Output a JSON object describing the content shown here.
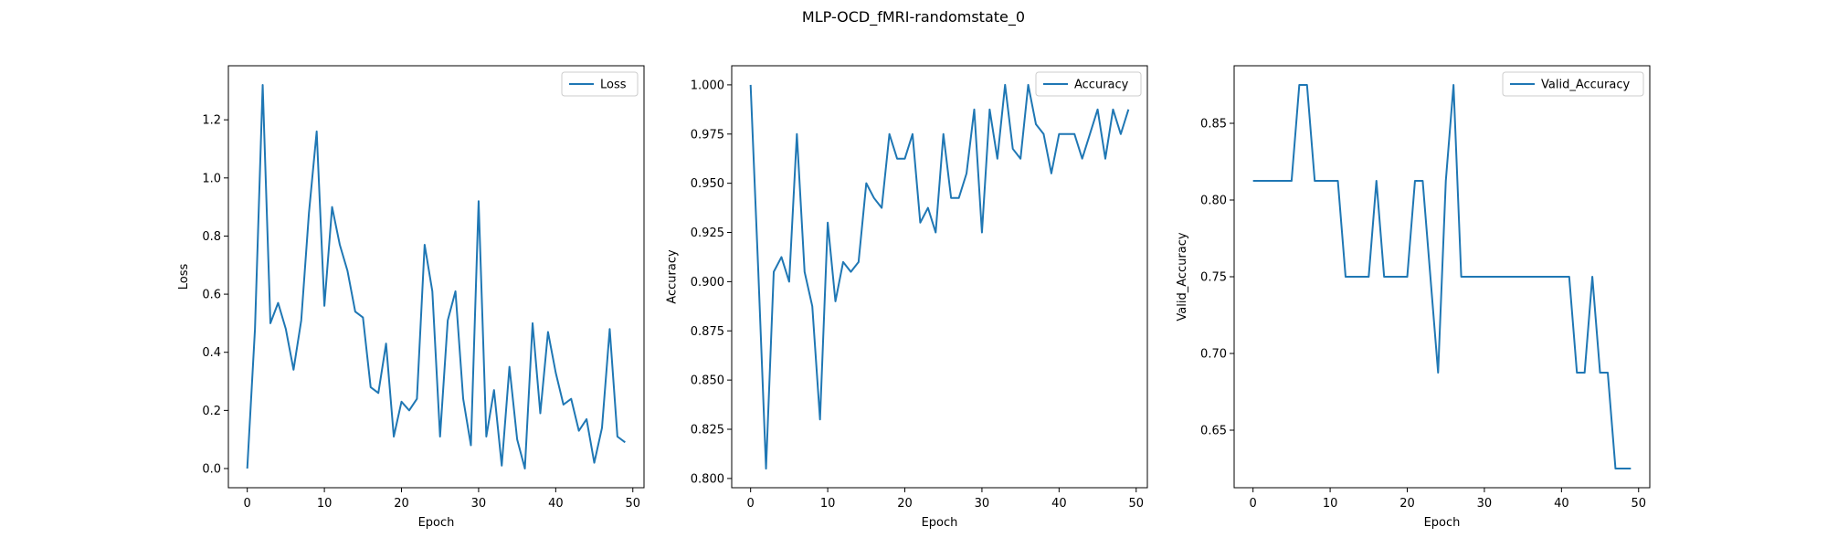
{
  "figure_title": "MLP-OCD_fMRI-randomstate_0",
  "line_color": "#1f77b4",
  "chart_data": [
    {
      "type": "line",
      "xlabel": "Epoch",
      "ylabel": "Loss",
      "legend_position": "top-right",
      "xlim": [
        -2.45,
        51.45
      ],
      "ylim": [
        -0.066,
        1.386
      ],
      "xticks": [
        0,
        10,
        20,
        30,
        40,
        50
      ],
      "xtick_labels": [
        "0",
        "10",
        "20",
        "30",
        "40",
        "50"
      ],
      "yticks": [
        0.0,
        0.2,
        0.4,
        0.6,
        0.8,
        1.0,
        1.2
      ],
      "ytick_labels": [
        "0.0",
        "0.2",
        "0.4",
        "0.6",
        "0.8",
        "1.0",
        "1.2"
      ],
      "grid": false,
      "series": [
        {
          "name": "Loss",
          "x": [
            0,
            1,
            2,
            3,
            4,
            5,
            6,
            7,
            8,
            9,
            10,
            11,
            12,
            13,
            14,
            15,
            16,
            17,
            18,
            19,
            20,
            21,
            22,
            23,
            24,
            25,
            26,
            27,
            28,
            29,
            30,
            31,
            32,
            33,
            34,
            35,
            36,
            37,
            38,
            39,
            40,
            41,
            42,
            43,
            44,
            45,
            46,
            47,
            48,
            49
          ],
          "y": [
            0.0,
            0.48,
            1.32,
            0.5,
            0.57,
            0.48,
            0.34,
            0.51,
            0.88,
            1.16,
            0.56,
            0.9,
            0.77,
            0.68,
            0.54,
            0.52,
            0.28,
            0.26,
            0.43,
            0.11,
            0.23,
            0.2,
            0.24,
            0.77,
            0.61,
            0.11,
            0.51,
            0.61,
            0.24,
            0.08,
            0.92,
            0.11,
            0.27,
            0.01,
            0.35,
            0.1,
            0.0,
            0.5,
            0.19,
            0.47,
            0.33,
            0.22,
            0.24,
            0.13,
            0.17,
            0.02,
            0.14,
            0.48,
            0.11,
            0.09
          ]
        }
      ]
    },
    {
      "type": "line",
      "xlabel": "Epoch",
      "ylabel": "Accuracy",
      "legend_position": "top-right",
      "xlim": [
        -2.45,
        51.45
      ],
      "ylim": [
        0.7953,
        1.0097
      ],
      "xticks": [
        0,
        10,
        20,
        30,
        40,
        50
      ],
      "xtick_labels": [
        "0",
        "10",
        "20",
        "30",
        "40",
        "50"
      ],
      "yticks": [
        0.8,
        0.825,
        0.85,
        0.875,
        0.9,
        0.925,
        0.95,
        0.975,
        1.0
      ],
      "ytick_labels": [
        "0.800",
        "0.825",
        "0.850",
        "0.875",
        "0.900",
        "0.925",
        "0.950",
        "0.975",
        "1.000"
      ],
      "grid": false,
      "series": [
        {
          "name": "Accuracy",
          "x": [
            0,
            1,
            2,
            3,
            4,
            5,
            6,
            7,
            8,
            9,
            10,
            11,
            12,
            13,
            14,
            15,
            16,
            17,
            18,
            19,
            20,
            21,
            22,
            23,
            24,
            25,
            26,
            27,
            28,
            29,
            30,
            31,
            32,
            33,
            34,
            35,
            36,
            37,
            38,
            39,
            40,
            41,
            42,
            43,
            44,
            45,
            46,
            47,
            48,
            49
          ],
          "y": [
            1.0,
            0.905,
            0.805,
            0.905,
            0.9125,
            0.9,
            0.975,
            0.905,
            0.8875,
            0.83,
            0.93,
            0.89,
            0.91,
            0.905,
            0.91,
            0.95,
            0.9425,
            0.9375,
            0.975,
            0.9625,
            0.9625,
            0.975,
            0.93,
            0.9375,
            0.925,
            0.975,
            0.9425,
            0.9425,
            0.955,
            0.9875,
            0.925,
            0.9875,
            0.9625,
            1.0,
            0.9675,
            0.9625,
            1.0,
            0.98,
            0.975,
            0.955,
            0.975,
            0.975,
            0.975,
            0.9625,
            0.975,
            0.9875,
            0.9625,
            0.9875,
            0.975,
            0.9875
          ]
        }
      ]
    },
    {
      "type": "line",
      "xlabel": "Epoch",
      "ylabel": "Valid_Accuracy",
      "legend_position": "top-right",
      "xlim": [
        -2.45,
        51.45
      ],
      "ylim": [
        0.6125,
        0.8875
      ],
      "xticks": [
        0,
        10,
        20,
        30,
        40,
        50
      ],
      "xtick_labels": [
        "0",
        "10",
        "20",
        "30",
        "40",
        "50"
      ],
      "yticks": [
        0.65,
        0.7,
        0.75,
        0.8,
        0.85
      ],
      "ytick_labels": [
        "0.65",
        "0.70",
        "0.75",
        "0.80",
        "0.85"
      ],
      "grid": false,
      "series": [
        {
          "name": "Valid_Accuracy",
          "x": [
            0,
            1,
            2,
            3,
            4,
            5,
            6,
            7,
            8,
            9,
            10,
            11,
            12,
            13,
            14,
            15,
            16,
            17,
            18,
            19,
            20,
            21,
            22,
            23,
            24,
            25,
            26,
            27,
            28,
            29,
            30,
            31,
            32,
            33,
            34,
            35,
            36,
            37,
            38,
            39,
            40,
            41,
            42,
            43,
            44,
            45,
            46,
            47,
            48,
            49
          ],
          "y": [
            0.8125,
            0.8125,
            0.8125,
            0.8125,
            0.8125,
            0.8125,
            0.875,
            0.875,
            0.8125,
            0.8125,
            0.8125,
            0.8125,
            0.75,
            0.75,
            0.75,
            0.75,
            0.8125,
            0.75,
            0.75,
            0.75,
            0.75,
            0.8125,
            0.8125,
            0.75,
            0.6875,
            0.8125,
            0.875,
            0.75,
            0.75,
            0.75,
            0.75,
            0.75,
            0.75,
            0.75,
            0.75,
            0.75,
            0.75,
            0.75,
            0.75,
            0.75,
            0.75,
            0.75,
            0.6875,
            0.6875,
            0.75,
            0.6875,
            0.6875,
            0.625,
            0.625,
            0.625
          ]
        }
      ]
    }
  ]
}
